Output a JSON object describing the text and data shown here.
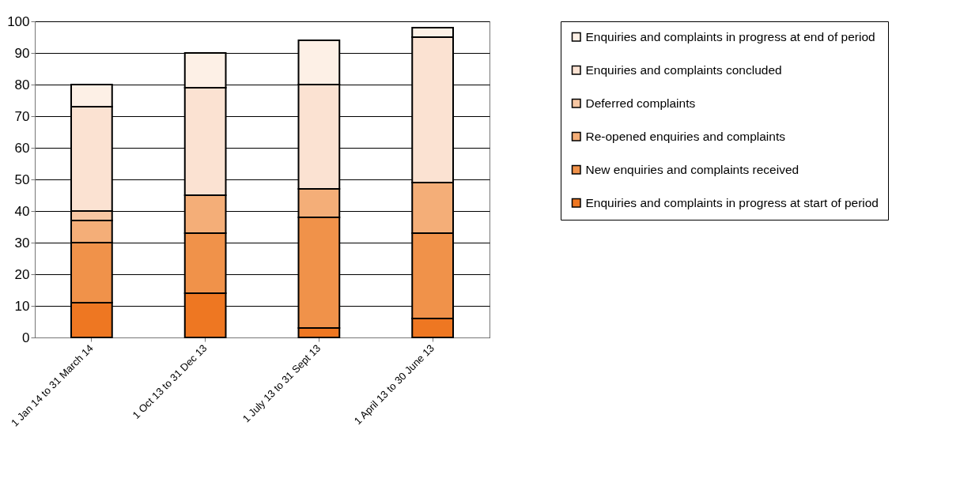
{
  "chart_data": {
    "type": "bar",
    "stacked": true,
    "categories": [
      "1 Jan 14 to 31 March 14",
      "1 Oct 13 to 31 Dec 13",
      "1 July 13 to 31 Sept 13",
      "1 April 13 to 30 June 13"
    ],
    "series": [
      {
        "name": "Enquiries and complaints in progress at start of period",
        "color": "#ee7722",
        "values": [
          11,
          14,
          3,
          6
        ]
      },
      {
        "name": "New enquiries and complaints received",
        "color": "#f0924a",
        "values": [
          19,
          19,
          35,
          27
        ]
      },
      {
        "name": "Re-opened enquiries and complaints",
        "color": "#f4ae78",
        "values": [
          7,
          12,
          9,
          16
        ]
      },
      {
        "name": "Deferred complaints",
        "color": "#f7c7a3",
        "values": [
          3,
          0,
          0,
          0
        ]
      },
      {
        "name": "Enquiries and complaints concluded",
        "color": "#fbe2d2",
        "values": [
          33,
          34,
          33,
          46
        ]
      },
      {
        "name": "Enquiries and complaints in progress at end of period",
        "color": "#fdf0e6",
        "values": [
          7,
          11,
          14,
          3
        ]
      }
    ],
    "ylim": [
      0,
      100
    ],
    "yticks": [
      0,
      10,
      20,
      30,
      40,
      50,
      60,
      70,
      80,
      90,
      100
    ],
    "grid": "y",
    "legend": "right"
  }
}
